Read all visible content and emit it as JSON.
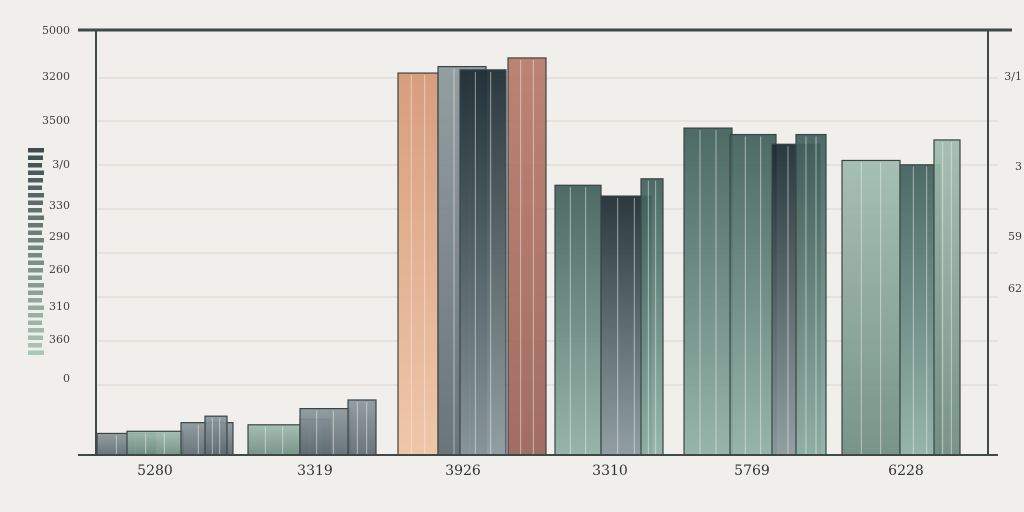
{
  "colors": {
    "background": "#f1efeb",
    "axis": "#3d4a47",
    "grid": "#d9d4ce",
    "slate": "#6e7b82",
    "sage": "#7f9c8f",
    "navy": "#1f3238",
    "peach": "#dfa484",
    "rust": "#a86e62",
    "teal": "#4d6e68"
  },
  "chart_data": {
    "type": "bar",
    "title": "",
    "xlabel": "",
    "ylabel": "",
    "ylim": [
      0,
      380
    ],
    "grid": true,
    "y_tick_labels_left": [
      "5000",
      "3200",
      "3500",
      "3/0",
      "330",
      "290",
      "260",
      "310",
      "360",
      "0"
    ],
    "y_tick_labels_right": [
      "3/1",
      "3",
      "59",
      "62"
    ],
    "categories": [
      "5280",
      "3319",
      "3926",
      "3310",
      "5769",
      "6228"
    ],
    "groups": [
      {
        "category": "5280",
        "bars": [
          {
            "value": 20,
            "color": "slate"
          },
          {
            "value": 22,
            "color": "sage"
          },
          {
            "value": 30,
            "color": "slate"
          },
          {
            "value": 36,
            "color": "slate"
          }
        ]
      },
      {
        "category": "3319",
        "bars": [
          {
            "value": 28,
            "color": "sage"
          },
          {
            "value": 33,
            "color": "slate"
          },
          {
            "value": 43,
            "color": "slate"
          },
          {
            "value": 51,
            "color": "slate"
          }
        ]
      },
      {
        "category": "3926",
        "bars": [
          {
            "value": 354,
            "color": "peach"
          },
          {
            "value": 360,
            "color": "slate"
          },
          {
            "value": 357,
            "color": "navy"
          },
          {
            "value": 368,
            "color": "rust"
          }
        ]
      },
      {
        "category": "3310",
        "bars": [
          {
            "value": 250,
            "color": "teal"
          },
          {
            "value": 240,
            "color": "navy"
          },
          {
            "value": 256,
            "color": "teal"
          }
        ]
      },
      {
        "category": "5769",
        "bars": [
          {
            "value": 303,
            "color": "teal"
          },
          {
            "value": 297,
            "color": "teal"
          },
          {
            "value": 288,
            "color": "navy"
          },
          {
            "value": 297,
            "color": "teal"
          }
        ]
      },
      {
        "category": "6228",
        "bars": [
          {
            "value": 273,
            "color": "sage"
          },
          {
            "value": 269,
            "color": "teal"
          },
          {
            "value": 292,
            "color": "sage"
          }
        ]
      }
    ]
  }
}
